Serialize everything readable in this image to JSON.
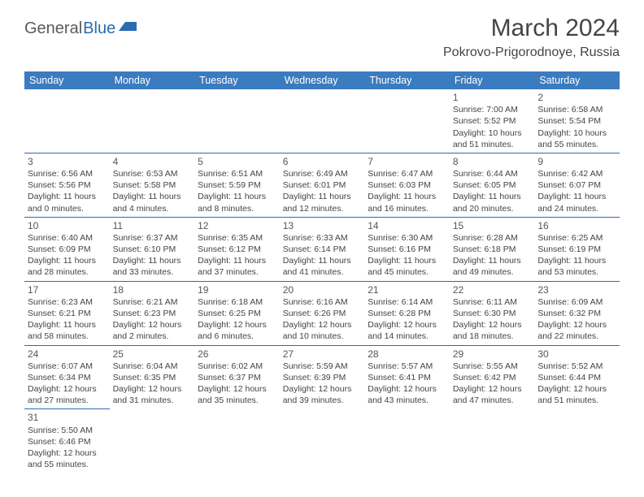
{
  "logo": {
    "part1": "General",
    "part2": "Blue"
  },
  "title": "March 2024",
  "location": "Pokrovo-Prigorodnoye, Russia",
  "colors": {
    "header_bg": "#3b7bbf",
    "accent": "#2a6cb0",
    "text": "#444444",
    "logo_gray": "#5a5a5a"
  },
  "day_headers": [
    "Sunday",
    "Monday",
    "Tuesday",
    "Wednesday",
    "Thursday",
    "Friday",
    "Saturday"
  ],
  "weeks": [
    [
      null,
      null,
      null,
      null,
      null,
      {
        "n": "1",
        "sr": "7:00 AM",
        "ss": "5:52 PM",
        "dl": "10 hours and 51 minutes."
      },
      {
        "n": "2",
        "sr": "6:58 AM",
        "ss": "5:54 PM",
        "dl": "10 hours and 55 minutes."
      }
    ],
    [
      {
        "n": "3",
        "sr": "6:56 AM",
        "ss": "5:56 PM",
        "dl": "11 hours and 0 minutes."
      },
      {
        "n": "4",
        "sr": "6:53 AM",
        "ss": "5:58 PM",
        "dl": "11 hours and 4 minutes."
      },
      {
        "n": "5",
        "sr": "6:51 AM",
        "ss": "5:59 PM",
        "dl": "11 hours and 8 minutes."
      },
      {
        "n": "6",
        "sr": "6:49 AM",
        "ss": "6:01 PM",
        "dl": "11 hours and 12 minutes."
      },
      {
        "n": "7",
        "sr": "6:47 AM",
        "ss": "6:03 PM",
        "dl": "11 hours and 16 minutes."
      },
      {
        "n": "8",
        "sr": "6:44 AM",
        "ss": "6:05 PM",
        "dl": "11 hours and 20 minutes."
      },
      {
        "n": "9",
        "sr": "6:42 AM",
        "ss": "6:07 PM",
        "dl": "11 hours and 24 minutes."
      }
    ],
    [
      {
        "n": "10",
        "sr": "6:40 AM",
        "ss": "6:09 PM",
        "dl": "11 hours and 28 minutes."
      },
      {
        "n": "11",
        "sr": "6:37 AM",
        "ss": "6:10 PM",
        "dl": "11 hours and 33 minutes."
      },
      {
        "n": "12",
        "sr": "6:35 AM",
        "ss": "6:12 PM",
        "dl": "11 hours and 37 minutes."
      },
      {
        "n": "13",
        "sr": "6:33 AM",
        "ss": "6:14 PM",
        "dl": "11 hours and 41 minutes."
      },
      {
        "n": "14",
        "sr": "6:30 AM",
        "ss": "6:16 PM",
        "dl": "11 hours and 45 minutes."
      },
      {
        "n": "15",
        "sr": "6:28 AM",
        "ss": "6:18 PM",
        "dl": "11 hours and 49 minutes."
      },
      {
        "n": "16",
        "sr": "6:25 AM",
        "ss": "6:19 PM",
        "dl": "11 hours and 53 minutes."
      }
    ],
    [
      {
        "n": "17",
        "sr": "6:23 AM",
        "ss": "6:21 PM",
        "dl": "11 hours and 58 minutes."
      },
      {
        "n": "18",
        "sr": "6:21 AM",
        "ss": "6:23 PM",
        "dl": "12 hours and 2 minutes."
      },
      {
        "n": "19",
        "sr": "6:18 AM",
        "ss": "6:25 PM",
        "dl": "12 hours and 6 minutes."
      },
      {
        "n": "20",
        "sr": "6:16 AM",
        "ss": "6:26 PM",
        "dl": "12 hours and 10 minutes."
      },
      {
        "n": "21",
        "sr": "6:14 AM",
        "ss": "6:28 PM",
        "dl": "12 hours and 14 minutes."
      },
      {
        "n": "22",
        "sr": "6:11 AM",
        "ss": "6:30 PM",
        "dl": "12 hours and 18 minutes."
      },
      {
        "n": "23",
        "sr": "6:09 AM",
        "ss": "6:32 PM",
        "dl": "12 hours and 22 minutes."
      }
    ],
    [
      {
        "n": "24",
        "sr": "6:07 AM",
        "ss": "6:34 PM",
        "dl": "12 hours and 27 minutes."
      },
      {
        "n": "25",
        "sr": "6:04 AM",
        "ss": "6:35 PM",
        "dl": "12 hours and 31 minutes."
      },
      {
        "n": "26",
        "sr": "6:02 AM",
        "ss": "6:37 PM",
        "dl": "12 hours and 35 minutes."
      },
      {
        "n": "27",
        "sr": "5:59 AM",
        "ss": "6:39 PM",
        "dl": "12 hours and 39 minutes."
      },
      {
        "n": "28",
        "sr": "5:57 AM",
        "ss": "6:41 PM",
        "dl": "12 hours and 43 minutes."
      },
      {
        "n": "29",
        "sr": "5:55 AM",
        "ss": "6:42 PM",
        "dl": "12 hours and 47 minutes."
      },
      {
        "n": "30",
        "sr": "5:52 AM",
        "ss": "6:44 PM",
        "dl": "12 hours and 51 minutes."
      }
    ],
    [
      {
        "n": "31",
        "sr": "5:50 AM",
        "ss": "6:46 PM",
        "dl": "12 hours and 55 minutes."
      },
      null,
      null,
      null,
      null,
      null,
      null
    ]
  ],
  "labels": {
    "sunrise": "Sunrise: ",
    "sunset": "Sunset: ",
    "daylight": "Daylight: "
  }
}
